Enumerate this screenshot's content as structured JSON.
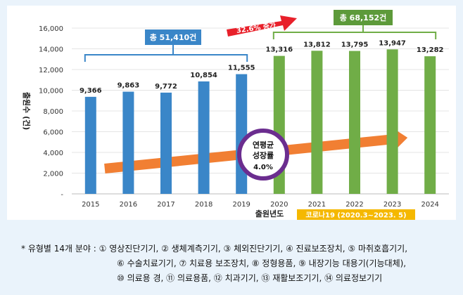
{
  "chart_data": {
    "type": "bar",
    "categories": [
      "2015",
      "2016",
      "2017",
      "2018",
      "2019",
      "2020",
      "2021",
      "2022",
      "2023",
      "2024"
    ],
    "values": [
      9366,
      9863,
      9772,
      10854,
      11555,
      13316,
      13812,
      13795,
      13947,
      13282
    ],
    "value_labels": [
      "9,366",
      "9,863",
      "9,772",
      "10,854",
      "11,555",
      "13,316",
      "13,812",
      "13,795",
      "13,947",
      "13,282"
    ],
    "ylim": [
      0,
      16000
    ],
    "yticks": [
      0,
      2000,
      4000,
      6000,
      8000,
      10000,
      12000,
      14000,
      16000
    ],
    "ytick_labels": [
      "-",
      "2,000",
      "4,000",
      "6,000",
      "8,000",
      "10,000",
      "12,000",
      "14,000",
      "16,000"
    ],
    "ylabel": "출원수 (건)",
    "xlabel": "출원년도",
    "grid": "horizontal",
    "colors": {
      "period1": "#3a86c8",
      "period2": "#70ad47",
      "arrow": "#f07828",
      "growth_arrow": "#e8202a",
      "circle_border": "#6b2d8f",
      "covid_badge": "#f5b800",
      "total1_badge": "#3a86c8",
      "total2_badge": "#5d9a3a"
    },
    "annotations": {
      "total1": "총 51,410건",
      "total2": "총 68,152건",
      "growth": "32.6% 증가",
      "cagr_line1": "연평균",
      "cagr_line2": "성장률",
      "cagr_value": "4.0%",
      "covid": "코로나19 (2020.3~2023. 5)"
    }
  },
  "footnote": {
    "line1": "*  유형별 14개  분야  :  ① 영상진단기기,  ② 생체계측기기,  ③ 체외진단기기,  ④ 진료보조장치,  ⑤ 마취호흡기기,",
    "line2": "⑥ 수술치료기기,  ⑦ 치료용  보조장치,  ⑧ 정형용품,  ⑨ 내장기능  대용기(기능대체),",
    "line3": "⑩  의료용  경,  ⑪ 의료용품,  ⑫ 치과기기,  ⑬ 재활보조기기,  ⑭ 의료정보기기"
  }
}
